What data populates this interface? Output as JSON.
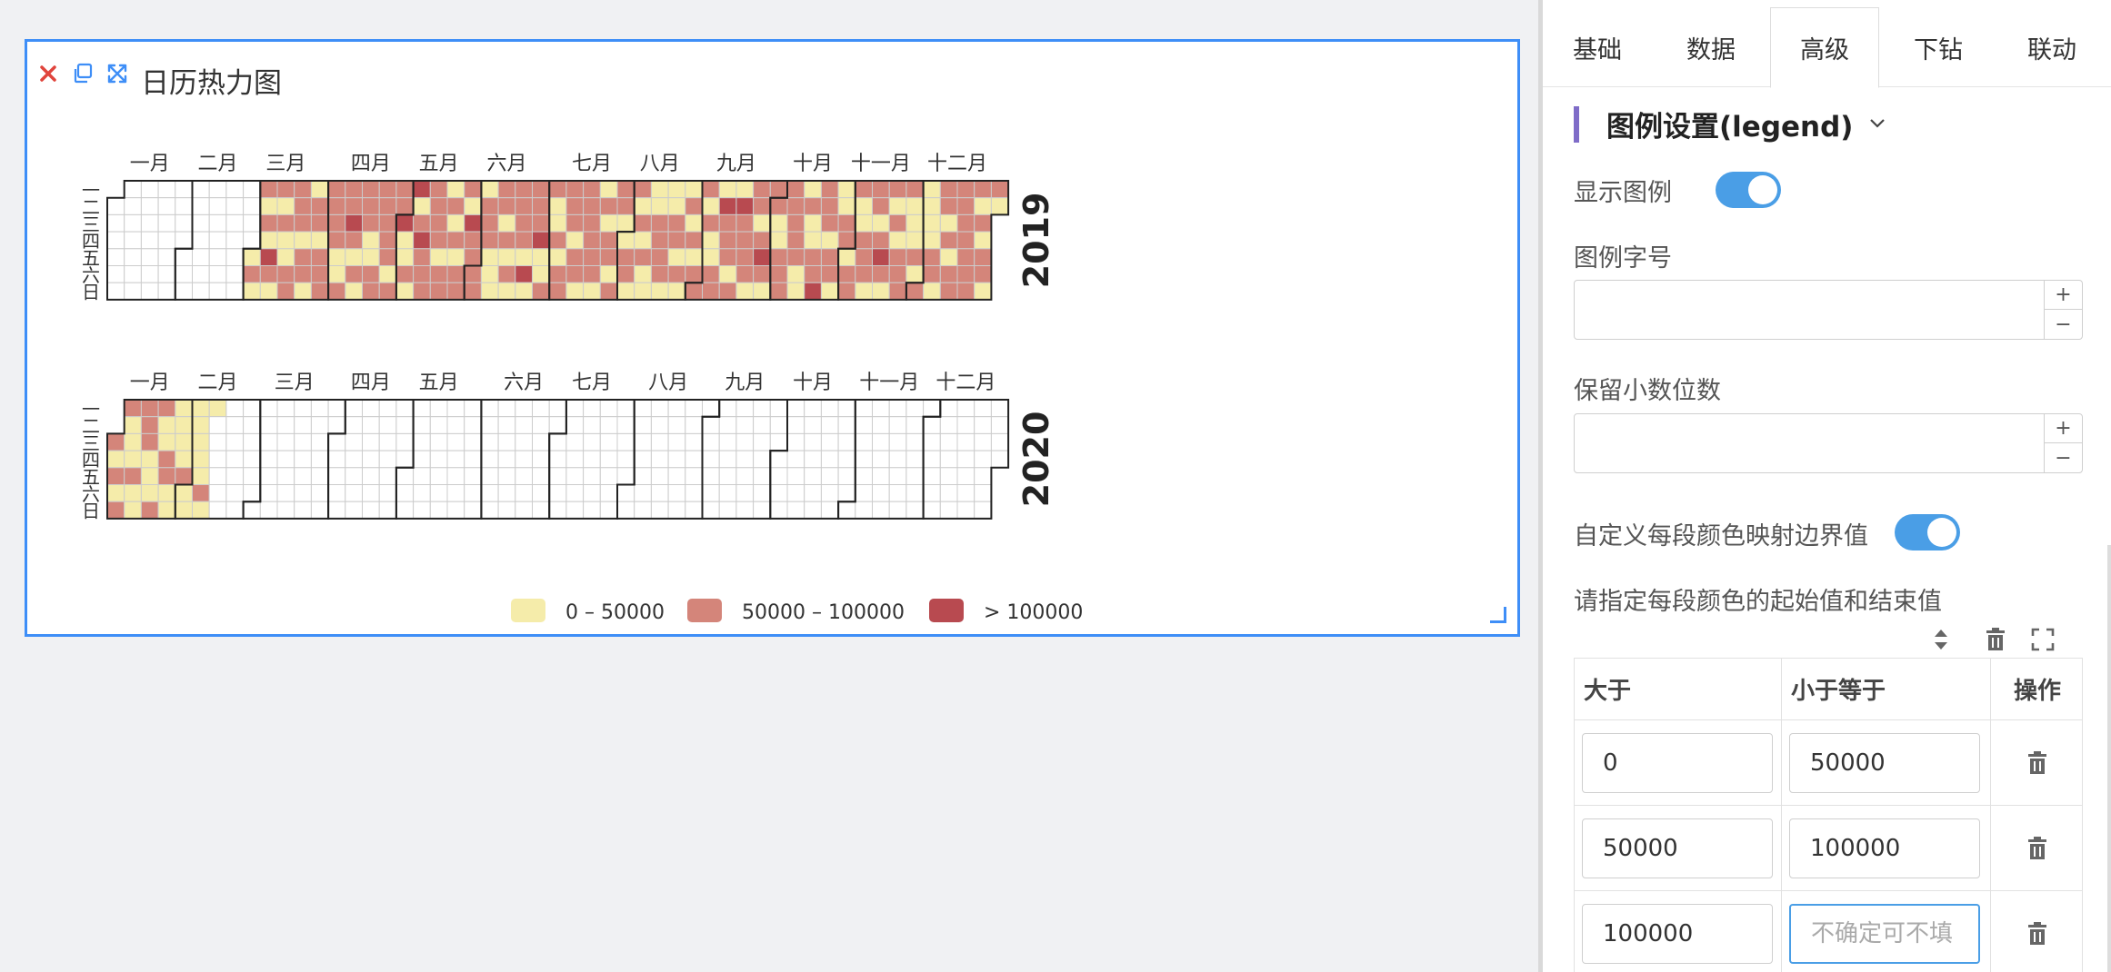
{
  "widget": {
    "title": "日历热力图",
    "tools": [
      {
        "name": "close-icon",
        "color": "#e0443c"
      },
      {
        "name": "copy-icon",
        "color": "#3e8ef7"
      },
      {
        "name": "expand-icon",
        "color": "#3e8ef7"
      }
    ]
  },
  "chart_data": {
    "type": "heatmap",
    "subtype": "calendar",
    "years": [
      "2019",
      "2020"
    ],
    "month_labels": [
      "一月",
      "二月",
      "三月",
      "四月",
      "五月",
      "六月",
      "七月",
      "八月",
      "九月",
      "十月",
      "十一月",
      "十二月"
    ],
    "weekday_labels": [
      "一",
      "二",
      "三",
      "四",
      "五",
      "六",
      "日"
    ],
    "colors": {
      "low": "#f5ecaa",
      "mid": "#d4857a",
      "high": "#b84a50",
      "empty": "#ffffff",
      "grid": "#cccccc",
      "border": "#222222"
    },
    "data_start": "2019-03-01",
    "data_end": "2020-02-10",
    "legend": [
      {
        "label": "0 – 50000",
        "color": "#f5ecaa"
      },
      {
        "label": "50000 – 100000",
        "color": "#d4857a"
      },
      {
        "label": "> 100000",
        "color": "#b84a50"
      }
    ],
    "legend_position": "bottom-center",
    "pieces": [
      {
        "gt": 0,
        "lte": 50000
      },
      {
        "gt": 50000,
        "lte": 100000
      },
      {
        "gt": 100000
      }
    ]
  },
  "panel": {
    "tabs": [
      {
        "label": "基础"
      },
      {
        "label": "数据"
      },
      {
        "label": "高级",
        "active": true
      },
      {
        "label": "下钻"
      },
      {
        "label": "联动"
      }
    ],
    "section_title": "图例设置(legend)",
    "show_legend_label": "显示图例",
    "show_legend": true,
    "font_size_label": "图例字号",
    "font_size_value": "",
    "decimal_label": "保留小数位数",
    "decimal_value": "",
    "custom_bounds_label": "自定义每段颜色映射边界值",
    "custom_bounds": true,
    "hint": "请指定每段颜色的起始值和结束值",
    "table": {
      "headers": [
        "大于",
        "小于等于",
        "操作"
      ],
      "rows": [
        {
          "gt": "0",
          "lte": "50000"
        },
        {
          "gt": "50000",
          "lte": "100000"
        },
        {
          "gt": "100000",
          "lte": "",
          "lte_placeholder": "不确定可不填"
        }
      ]
    }
  }
}
